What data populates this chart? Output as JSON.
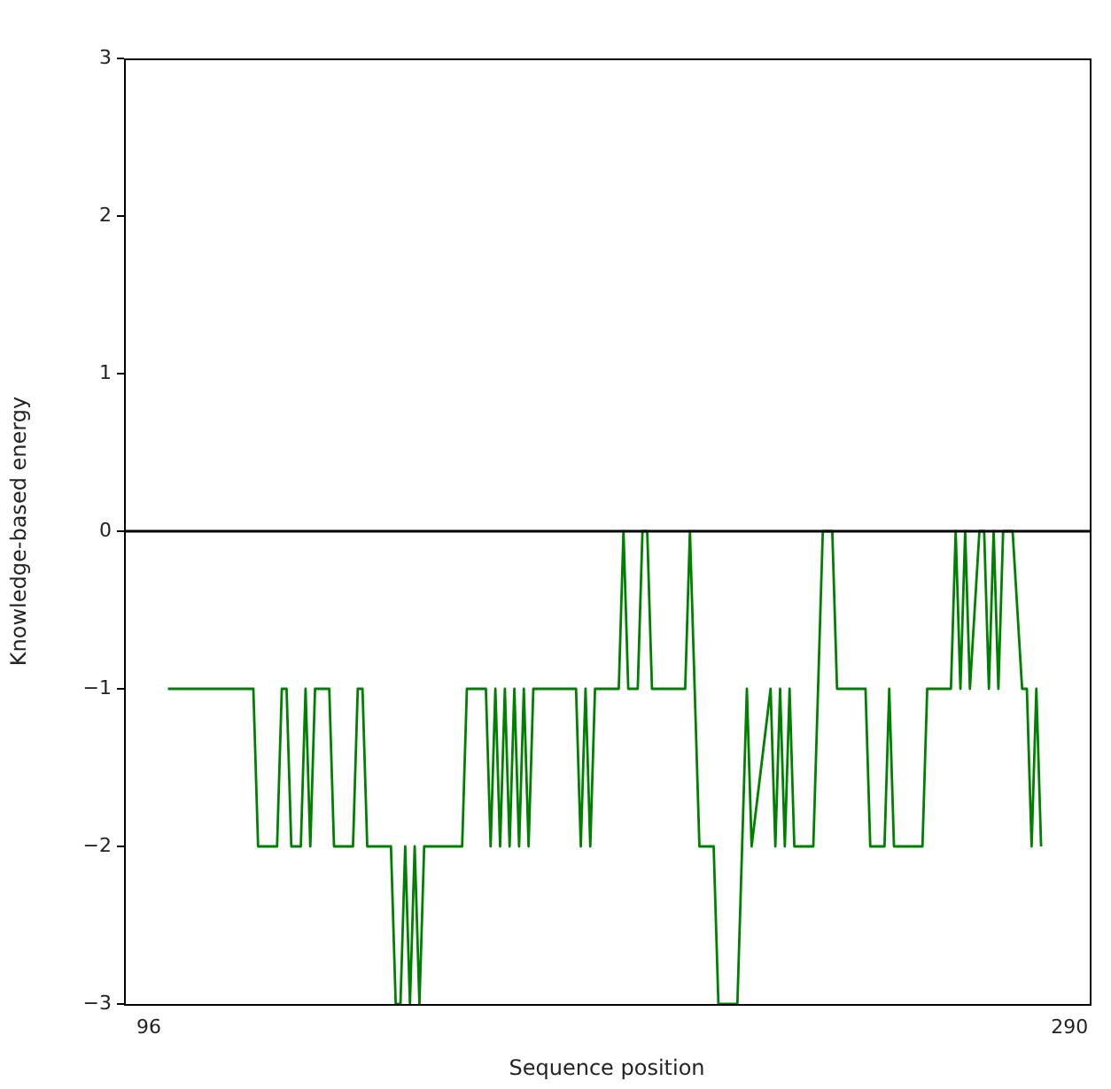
{
  "chart_data": {
    "type": "line",
    "xlabel": "Sequence position",
    "ylabel": "Knowledge-based energy",
    "xlim": [
      90.75,
      294.25
    ],
    "xticks": [
      96,
      290
    ],
    "ylim": [
      -3,
      3
    ],
    "yticks": [
      {
        "value": -3,
        "label": "−3"
      },
      {
        "value": -2,
        "label": "−2"
      },
      {
        "value": -1,
        "label": "−1"
      },
      0,
      1,
      2,
      3
    ],
    "grid": false,
    "marker": "none",
    "line_style": "solid",
    "ref_lines": [
      {
        "axis": "y",
        "value": 0,
        "color": "#000000"
      }
    ],
    "series": [
      {
        "color": "#008000",
        "x": [
          100,
          114,
          115,
          118,
          119,
          123,
          124,
          125,
          126,
          128,
          129,
          130,
          131,
          134,
          135,
          139,
          140,
          141,
          142,
          147,
          148,
          149,
          150,
          151,
          152,
          153,
          154,
          155,
          162,
          163,
          167,
          168,
          169,
          170,
          171,
          172,
          173,
          174,
          175,
          176,
          177,
          186,
          187,
          188,
          189,
          190,
          195,
          196,
          197,
          199,
          200,
          201,
          202,
          209,
          210,
          211,
          212,
          215,
          216,
          220,
          221,
          222,
          223,
          227,
          228,
          229,
          230,
          231,
          232,
          236,
          237,
          238,
          240,
          241,
          247,
          248,
          251,
          252,
          253,
          259,
          260,
          265,
          266,
          267,
          268,
          269,
          271,
          272,
          273,
          274,
          275,
          276,
          278,
          280,
          281,
          282,
          283,
          284
        ],
        "values": [
          -1,
          -1,
          -1,
          -1,
          -2,
          -2,
          -1,
          -1,
          -2,
          -2,
          -1,
          -2,
          -1,
          -1,
          -2,
          -2,
          -1,
          -1,
          -2,
          -2,
          -3,
          -3,
          -2,
          -3,
          -2,
          -3,
          -2,
          -2,
          -2,
          -1,
          -1,
          -2,
          -1,
          -2,
          -1,
          -2,
          -1,
          -2,
          -1,
          -2,
          -1,
          -1,
          -2,
          -1,
          -2,
          -1,
          -1,
          0,
          -1,
          -1,
          0,
          0,
          -1,
          -1,
          0,
          -1,
          -2,
          -2,
          -3,
          -3,
          -2,
          -1,
          -2,
          -1,
          -2,
          -1,
          -2,
          -1,
          -2,
          -2,
          -1,
          0,
          0,
          -1,
          -1,
          -2,
          -2,
          -1,
          -2,
          -2,
          -1,
          -1,
          0,
          -1,
          0,
          -1,
          0,
          0,
          -1,
          0,
          -1,
          0,
          0,
          -1,
          -1,
          -2,
          -1,
          -2
        ]
      }
    ]
  }
}
